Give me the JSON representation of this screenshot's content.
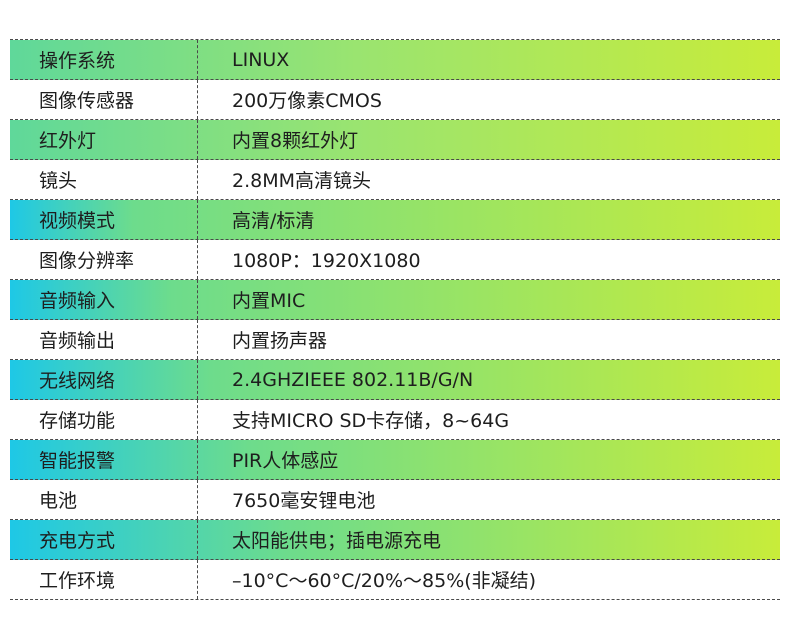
{
  "colors": {
    "gradient_start": "#1ec8e6",
    "gradient_end": "#c8ec3a",
    "row_plain": "#ffffff",
    "text": "#1e1e1e",
    "border": "#4a4a4a"
  },
  "specs": [
    {
      "label": "操作系统",
      "value": "LINUX",
      "highlight": true
    },
    {
      "label": "图像传感器",
      "value": "200万像素CMOS",
      "highlight": false
    },
    {
      "label": "红外灯",
      "value": "内置8颗红外灯",
      "highlight": true
    },
    {
      "label": "镜头",
      "value": "2.8MM高清镜头",
      "highlight": false
    },
    {
      "label": "视频模式",
      "value": "高清/标清",
      "highlight": true
    },
    {
      "label": "图像分辨率",
      "value": "1080P：1920X1080",
      "highlight": false
    },
    {
      "label": "音频输入",
      "value": "内置MIC",
      "highlight": true
    },
    {
      "label": "音频输出",
      "value": "内置扬声器",
      "highlight": false
    },
    {
      "label": "无线网络",
      "value": "2.4GHZIEEE 802.11B/G/N",
      "highlight": true
    },
    {
      "label": "存储功能",
      "value": "支持MICRO SD卡存储，8~64G",
      "highlight": false
    },
    {
      "label": "智能报警",
      "value": "PIR人体感应",
      "highlight": true
    },
    {
      "label": "电池",
      "value": "7650毫安锂电池",
      "highlight": false
    },
    {
      "label": "充电方式",
      "value": "太阳能供电；插电源充电",
      "highlight": true
    },
    {
      "label": "工作环境",
      "value": "–10°C～60°C/20%～85%(非凝结)",
      "highlight": false
    }
  ]
}
